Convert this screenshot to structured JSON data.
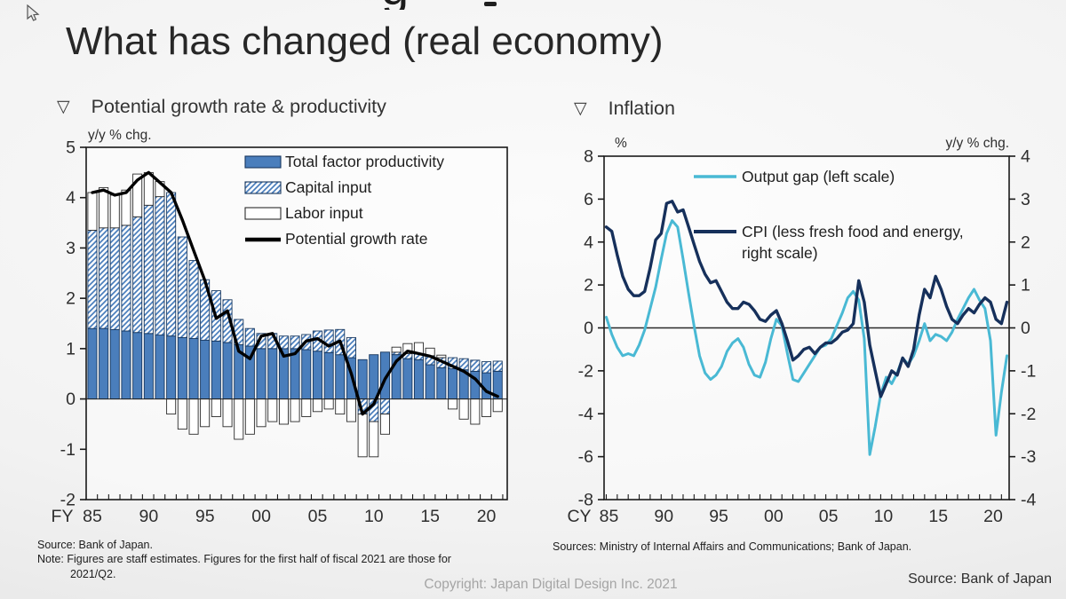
{
  "page": {
    "title": "What has changed (real economy)",
    "copyright": "Copyright: Japan Digital Design Inc. 2021",
    "clipped_text_above": "g"
  },
  "left_panel": {
    "marker": "▽",
    "header": "Potential growth rate & productivity",
    "source": "Source: Bank of Japan.",
    "note_line1": "Note: Figures are staff estimates. Figures for the first half of fiscal 2021 are those for",
    "note_line2": "2021/Q2."
  },
  "right_panel": {
    "marker": "▽",
    "header": "Inflation",
    "sources": "Sources: Ministry of Internal Affairs and Communications; Bank of Japan.",
    "source_bottom_right": "Source: Bank of Japan"
  },
  "chart_data": [
    {
      "id": "potential-growth-productivity",
      "type": "bar",
      "title": "Potential growth rate & productivity",
      "unit_label": "y/y % chg.",
      "x_prefix": "FY",
      "x_tick_labels": [
        "85",
        "90",
        "95",
        "00",
        "05",
        "10",
        "15",
        "20"
      ],
      "x_tick_years": [
        1985,
        1990,
        1995,
        2000,
        2005,
        2010,
        2015,
        2020
      ],
      "ylim": [
        -2,
        5
      ],
      "y_ticks": [
        5,
        4,
        3,
        2,
        1,
        0,
        -1,
        -2
      ],
      "grid": false,
      "legend_position": "top-right-inside",
      "years": [
        1985,
        1986,
        1987,
        1988,
        1989,
        1990,
        1991,
        1992,
        1993,
        1994,
        1995,
        1996,
        1997,
        1998,
        1999,
        2000,
        2001,
        2002,
        2003,
        2004,
        2005,
        2006,
        2007,
        2008,
        2009,
        2010,
        2011,
        2012,
        2013,
        2014,
        2015,
        2016,
        2017,
        2018,
        2019,
        2020,
        2021
      ],
      "series": [
        {
          "name": "Total factor productivity",
          "type": "bar",
          "style": "solid",
          "color": "#4a7ebc",
          "border": "#17375e",
          "values": [
            1.4,
            1.4,
            1.38,
            1.35,
            1.32,
            1.3,
            1.27,
            1.25,
            1.22,
            1.2,
            1.17,
            1.15,
            1.12,
            1.08,
            1.05,
            1.0,
            1.0,
            1.0,
            1.0,
            0.98,
            0.95,
            0.92,
            0.88,
            0.82,
            0.78,
            0.88,
            0.93,
            0.88,
            0.8,
            0.78,
            0.68,
            0.62,
            0.6,
            0.58,
            0.55,
            0.52,
            0.55
          ]
        },
        {
          "name": "Capital input",
          "type": "bar",
          "style": "hatched",
          "color": "#4a7ebc",
          "border": "#17375e",
          "values": [
            1.95,
            2.0,
            2.02,
            2.1,
            2.3,
            2.55,
            2.75,
            2.85,
            2.0,
            1.55,
            1.2,
            1.0,
            0.85,
            0.5,
            0.35,
            0.3,
            0.3,
            0.25,
            0.25,
            0.3,
            0.4,
            0.45,
            0.5,
            0.4,
            -0.3,
            -0.45,
            -0.3,
            0.05,
            0.1,
            0.12,
            0.18,
            0.2,
            0.22,
            0.22,
            0.22,
            0.22,
            0.2
          ]
        },
        {
          "name": "Labor input",
          "type": "bar",
          "style": "white",
          "color": "#ffffff",
          "border": "#2b2b2b",
          "values": [
            0.75,
            0.8,
            0.65,
            0.7,
            0.85,
            0.65,
            0.3,
            -0.3,
            -0.6,
            -0.7,
            -0.55,
            -0.35,
            -0.55,
            -0.8,
            -0.7,
            -0.55,
            -0.45,
            -0.5,
            -0.45,
            -0.35,
            -0.25,
            -0.2,
            -0.3,
            -0.45,
            -0.85,
            -0.7,
            -0.4,
            0.1,
            0.2,
            0.22,
            0.15,
            0.05,
            -0.2,
            -0.4,
            -0.5,
            -0.35,
            -0.25
          ]
        },
        {
          "name": "Potential growth rate",
          "type": "line",
          "color": "#000000",
          "values": [
            4.1,
            4.15,
            4.05,
            4.1,
            4.35,
            4.5,
            4.3,
            4.1,
            3.55,
            2.95,
            2.35,
            1.6,
            1.75,
            0.95,
            0.8,
            1.25,
            1.3,
            0.85,
            0.9,
            1.15,
            1.2,
            1.05,
            1.15,
            0.5,
            -0.3,
            -0.1,
            0.4,
            0.75,
            0.95,
            0.9,
            0.85,
            0.75,
            0.65,
            0.55,
            0.4,
            0.15,
            0.05
          ]
        }
      ]
    },
    {
      "id": "inflation",
      "type": "line",
      "title": "Inflation",
      "left_axis_label": "%",
      "right_axis_label": "y/y % chg.",
      "x_prefix": "CY",
      "x_tick_labels": [
        "85",
        "90",
        "95",
        "00",
        "05",
        "10",
        "15",
        "20"
      ],
      "x_tick_years": [
        1985,
        1990,
        1995,
        2000,
        2005,
        2010,
        2015,
        2020
      ],
      "ylim_left": [
        -8,
        8
      ],
      "ylim_right": [
        -4,
        4
      ],
      "y_ticks_left": [
        8,
        6,
        4,
        2,
        0,
        -2,
        -4,
        -6,
        -8
      ],
      "y_ticks_right": [
        4,
        3,
        2,
        1,
        0,
        -1,
        -2,
        -3,
        -4
      ],
      "zero_line": true,
      "grid": false,
      "x_start": 1985,
      "x_step": 0.5,
      "series": [
        {
          "name": "Output gap (left scale)",
          "axis": "left",
          "color": "#49b9d4",
          "values": [
            0.5,
            -0.3,
            -0.9,
            -1.3,
            -1.2,
            -1.3,
            -0.8,
            -0.1,
            0.9,
            1.9,
            3.2,
            4.4,
            5.0,
            4.7,
            3.2,
            1.6,
            0.1,
            -1.3,
            -2.1,
            -2.4,
            -2.2,
            -1.8,
            -1.1,
            -0.7,
            -0.5,
            -0.9,
            -1.7,
            -2.2,
            -2.3,
            -1.6,
            -0.5,
            0.4,
            0.1,
            -1.2,
            -2.4,
            -2.5,
            -2.1,
            -1.7,
            -1.3,
            -0.9,
            -0.8,
            -0.5,
            0.1,
            0.7,
            1.4,
            1.7,
            1.3,
            -0.5,
            -5.9,
            -4.6,
            -3.1,
            -2.3,
            -2.6,
            -2.1,
            -1.4,
            -1.7,
            -1.3,
            -0.6,
            0.2,
            -0.6,
            -0.3,
            -0.4,
            -0.6,
            -0.2,
            0.4,
            0.9,
            1.4,
            1.8,
            1.3,
            0.9,
            -0.6,
            -5.0,
            -3.0,
            -1.3
          ]
        },
        {
          "name": "CPI (less fresh food and energy, right scale)",
          "legend_line1": "CPI (less fresh food and energy,",
          "legend_line2": "right scale)",
          "axis": "right",
          "color": "#16305b",
          "values": [
            2.35,
            2.25,
            1.7,
            1.2,
            0.9,
            0.75,
            0.75,
            0.85,
            1.4,
            2.05,
            2.2,
            2.9,
            2.95,
            2.7,
            2.75,
            2.35,
            1.95,
            1.55,
            1.25,
            1.05,
            1.1,
            0.85,
            0.6,
            0.45,
            0.45,
            0.6,
            0.55,
            0.4,
            0.2,
            0.15,
            0.3,
            0.4,
            0.1,
            -0.3,
            -0.75,
            -0.65,
            -0.5,
            -0.45,
            -0.6,
            -0.45,
            -0.35,
            -0.35,
            -0.25,
            -0.1,
            -0.05,
            0.1,
            1.1,
            0.6,
            -0.4,
            -1.0,
            -1.6,
            -1.3,
            -1.0,
            -1.1,
            -0.7,
            -0.9,
            -0.5,
            0.3,
            0.9,
            0.7,
            1.2,
            0.9,
            0.5,
            0.2,
            0.1,
            0.3,
            0.45,
            0.35,
            0.55,
            0.7,
            0.6,
            0.2,
            0.1,
            0.6
          ]
        }
      ]
    }
  ]
}
